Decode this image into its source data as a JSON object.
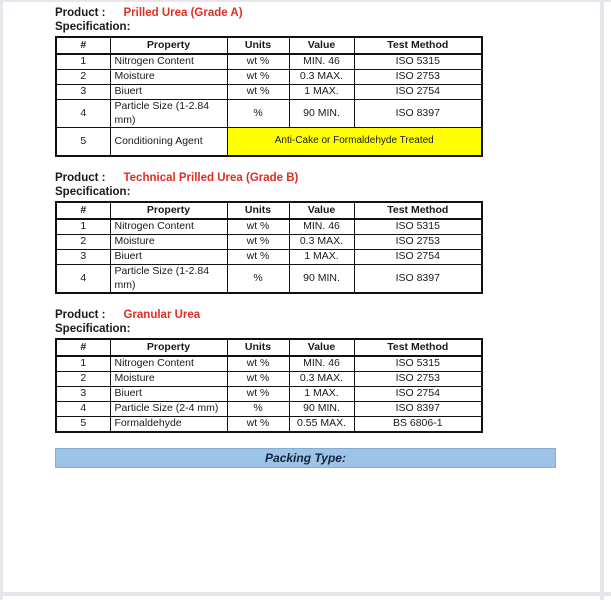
{
  "colors": {
    "red": "#e02e24",
    "yellow": "#ffff00",
    "blue": "#9dc3e6",
    "navy": "#10243e"
  },
  "sections": [
    {
      "product_label": "Product :",
      "product_name": "Prilled Urea (Grade A)",
      "spec_label": "Specification:",
      "table": {
        "headers": [
          "#",
          "Property",
          "Units",
          "Value",
          "Test Method"
        ],
        "rows": [
          {
            "cells": [
              {
                "t": "1"
              },
              {
                "t": "Nitrogen Content"
              },
              {
                "t": "wt %"
              },
              {
                "t": "MIN. 46"
              },
              {
                "t": "ISO 5315"
              }
            ]
          },
          {
            "cells": [
              {
                "t": "2"
              },
              {
                "t": "Moisture"
              },
              {
                "t": "wt %"
              },
              {
                "t": "0.3 MAX."
              },
              {
                "t": "ISO 2753"
              }
            ]
          },
          {
            "cells": [
              {
                "t": "3"
              },
              {
                "t": "Biuert"
              },
              {
                "t": "wt %"
              },
              {
                "t": "1 MAX."
              },
              {
                "t": "ISO 2754"
              }
            ]
          },
          {
            "tall": true,
            "cells": [
              {
                "t": "4"
              },
              {
                "t": "Particle Size (1-2.84 mm)"
              },
              {
                "t": "%"
              },
              {
                "t": "90 MIN."
              },
              {
                "t": "ISO 8397"
              }
            ]
          },
          {
            "tall": true,
            "cells": [
              {
                "t": "5"
              },
              {
                "t": "Conditioning Agent"
              },
              {
                "t": "Anti-Cake or Formaldehyde Treated",
                "span": 3,
                "highlight": true
              }
            ]
          }
        ]
      }
    },
    {
      "product_label": "Product :",
      "product_name": "Technical Prilled Urea (Grade B)",
      "spec_label": "Specification:",
      "table": {
        "headers": [
          "#",
          "Property",
          "Units",
          "Value",
          "Test Method"
        ],
        "rows": [
          {
            "cells": [
              {
                "t": "1"
              },
              {
                "t": "Nitrogen Content"
              },
              {
                "t": "wt %"
              },
              {
                "t": "MIN. 46"
              },
              {
                "t": "ISO 5315"
              }
            ]
          },
          {
            "cells": [
              {
                "t": "2"
              },
              {
                "t": "Moisture"
              },
              {
                "t": "wt %"
              },
              {
                "t": "0.3 MAX."
              },
              {
                "t": "ISO 2753"
              }
            ]
          },
          {
            "cells": [
              {
                "t": "3"
              },
              {
                "t": "Biuert"
              },
              {
                "t": "wt %"
              },
              {
                "t": "1 MAX."
              },
              {
                "t": "ISO 2754"
              }
            ]
          },
          {
            "tall": true,
            "cells": [
              {
                "t": "4"
              },
              {
                "t": "Particle Size (1-2.84 mm)"
              },
              {
                "t": "%"
              },
              {
                "t": "90 MIN."
              },
              {
                "t": "ISO 8397"
              }
            ]
          }
        ]
      }
    },
    {
      "product_label": "Product :",
      "product_name": "Granular Urea",
      "spec_label": "Specification:",
      "table": {
        "headers": [
          "#",
          "Property",
          "Units",
          "Value",
          "Test Method"
        ],
        "rows": [
          {
            "cells": [
              {
                "t": "1"
              },
              {
                "t": "Nitrogen Content"
              },
              {
                "t": "wt %"
              },
              {
                "t": "MIN. 46"
              },
              {
                "t": "ISO 5315"
              }
            ]
          },
          {
            "cells": [
              {
                "t": "2"
              },
              {
                "t": "Moisture"
              },
              {
                "t": "wt %"
              },
              {
                "t": "0.3 MAX."
              },
              {
                "t": "ISO 2753"
              }
            ]
          },
          {
            "cells": [
              {
                "t": "3"
              },
              {
                "t": "Biuert"
              },
              {
                "t": "wt %"
              },
              {
                "t": "1 MAX."
              },
              {
                "t": "ISO 2754"
              }
            ]
          },
          {
            "cells": [
              {
                "t": "4"
              },
              {
                "t": "Particle Size (2-4 mm)"
              },
              {
                "t": "%"
              },
              {
                "t": "90 MIN."
              },
              {
                "t": "ISO 8397"
              }
            ]
          },
          {
            "cells": [
              {
                "t": "5"
              },
              {
                "t": "Formaldehyde"
              },
              {
                "t": "wt %"
              },
              {
                "t": "0.55 MAX."
              },
              {
                "t": "BS 6806-1"
              }
            ]
          }
        ]
      }
    }
  ],
  "banner": {
    "label": "Packing Type:"
  }
}
